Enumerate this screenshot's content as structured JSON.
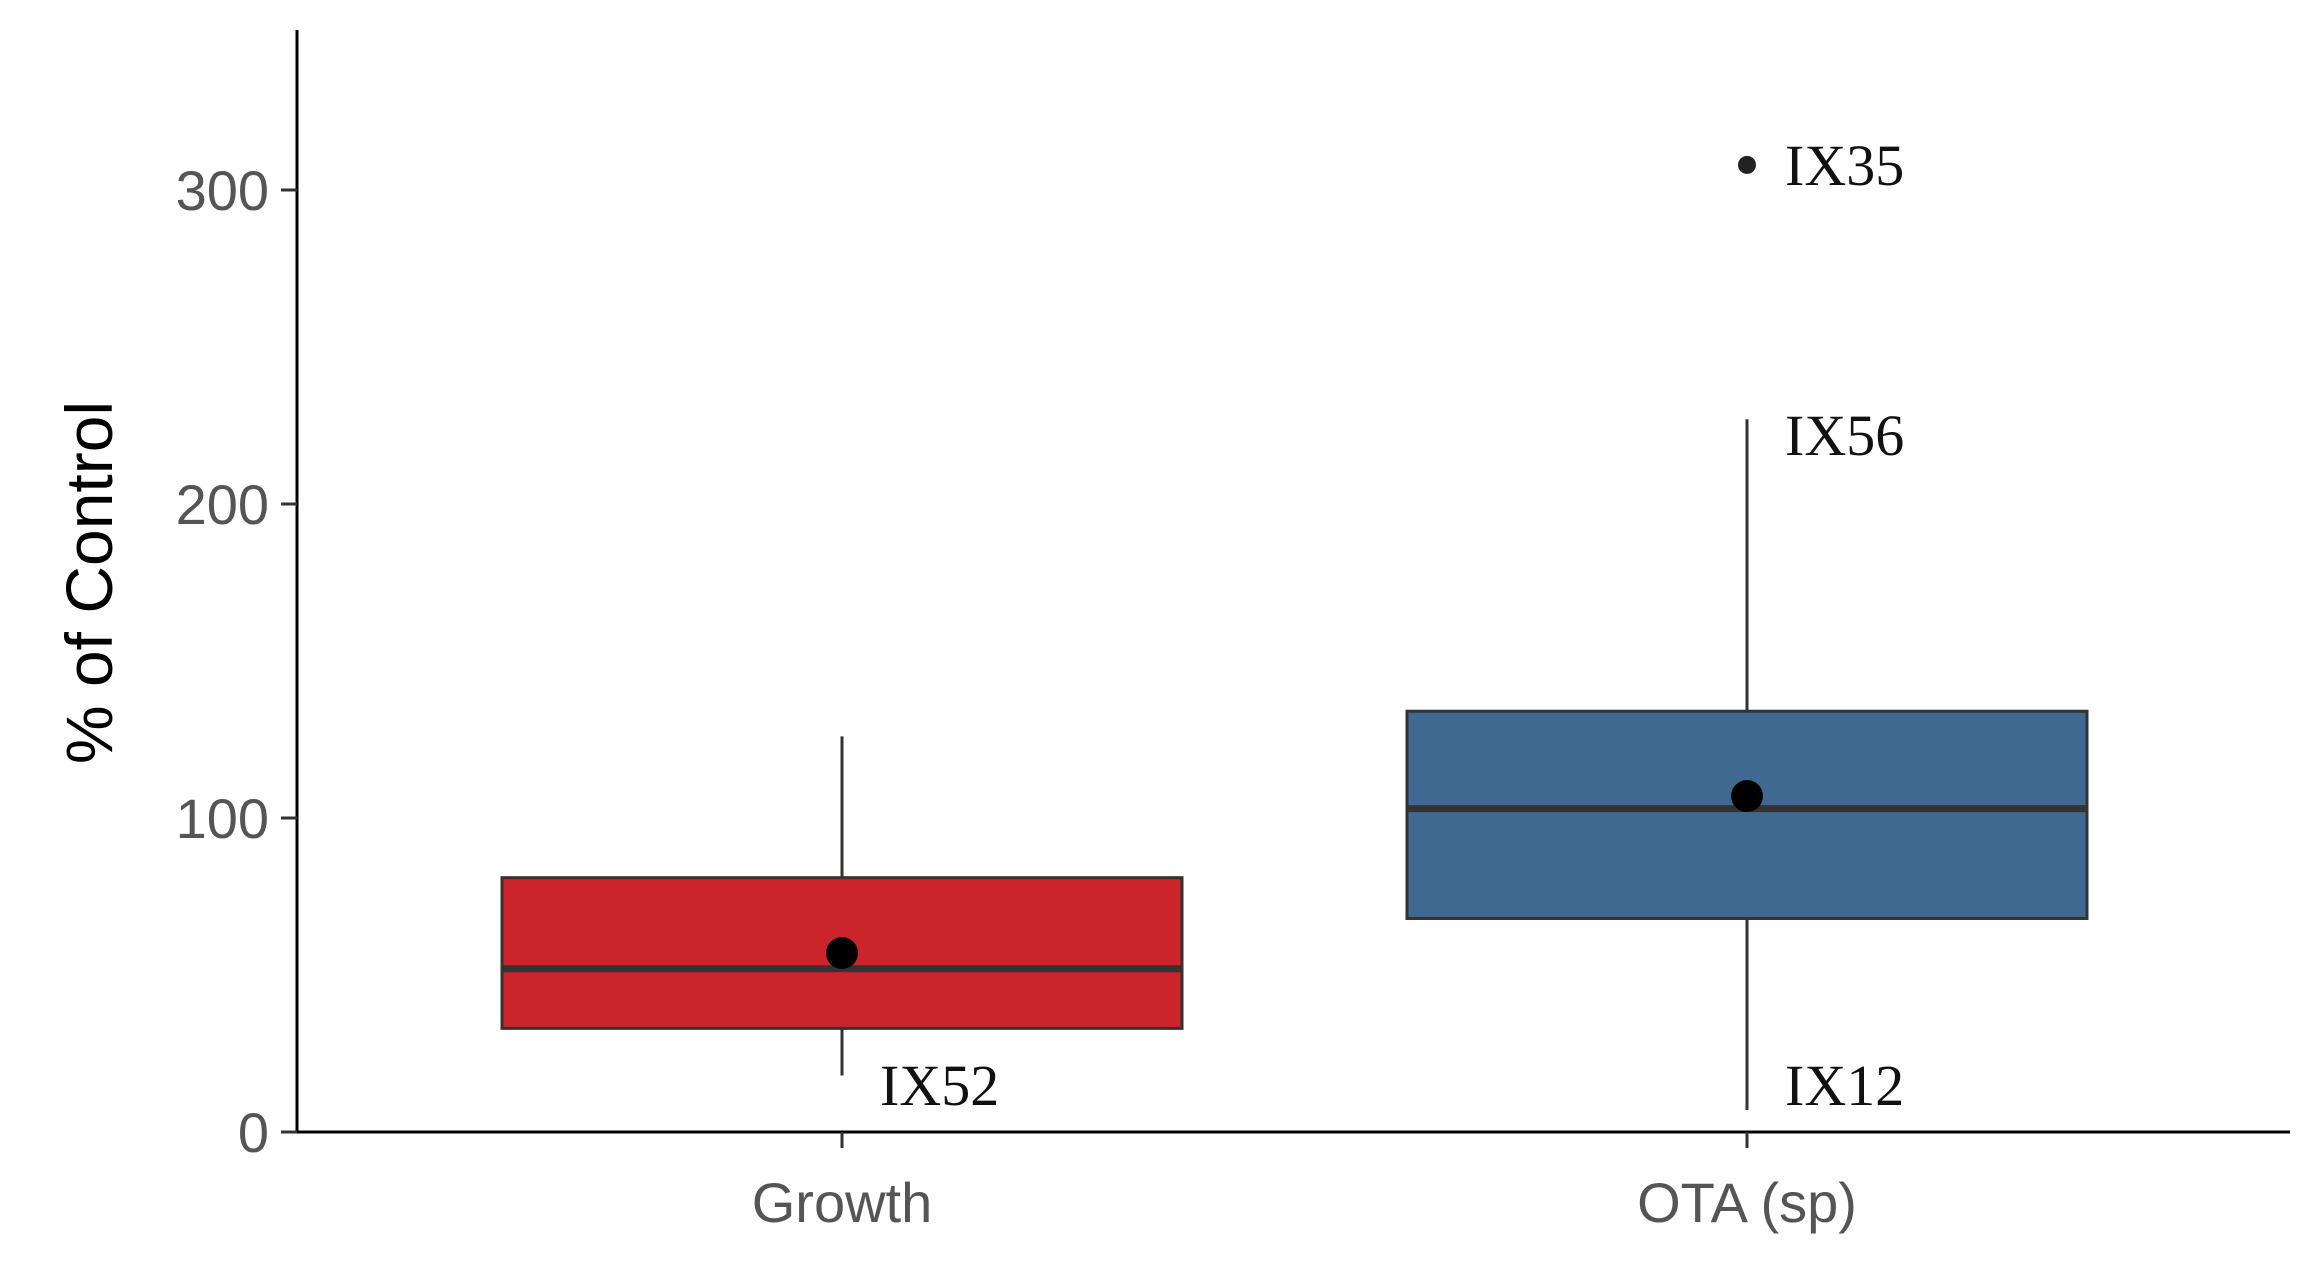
{
  "chart_data": {
    "type": "boxplot",
    "title": "",
    "xlabel": "",
    "ylabel": "% of Control",
    "ylim": [
      0,
      350
    ],
    "yticks": [
      0,
      100,
      200,
      300
    ],
    "grid": false,
    "categories": [
      "Growth",
      "OTA (sp)"
    ],
    "boxes": [
      {
        "category": "Growth",
        "color": "#cc242b",
        "whisker_low": 18,
        "q1": 33,
        "median": 52,
        "q3": 81,
        "whisker_high": 126,
        "mean": 57,
        "outliers": [],
        "annotations": [
          {
            "text": "IX52",
            "value": 15,
            "anchor": "whisker_low"
          }
        ]
      },
      {
        "category": "OTA (sp)",
        "color": "#3f6990",
        "whisker_low": 7,
        "q1": 68,
        "median": 103,
        "q3": 134,
        "whisker_high": 227,
        "mean": 107,
        "outliers": [
          308
        ],
        "annotations": [
          {
            "text": "IX35",
            "value": 308,
            "anchor": "outlier"
          },
          {
            "text": "IX56",
            "value": 222,
            "anchor": "whisker_high"
          },
          {
            "text": "IX12",
            "value": 15,
            "anchor": "whisker_low"
          }
        ]
      }
    ]
  }
}
